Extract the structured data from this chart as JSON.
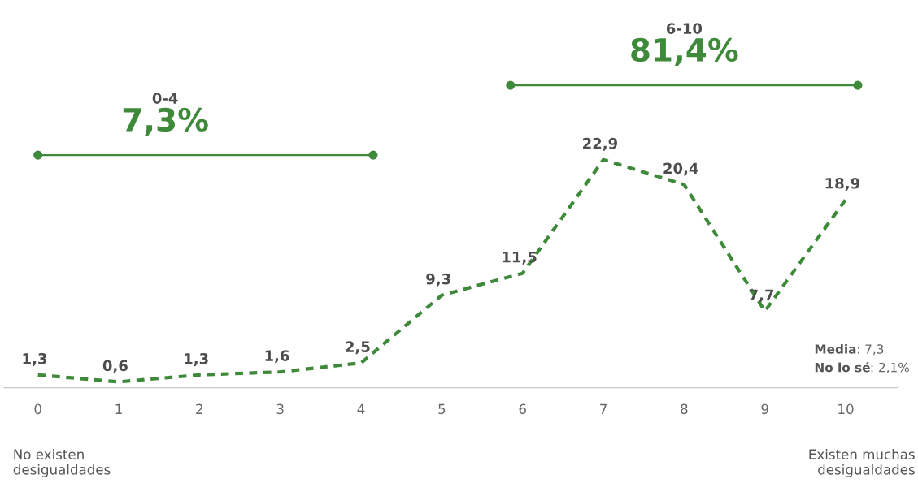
{
  "chart_data": {
    "type": "line",
    "categories": [
      "0",
      "1",
      "2",
      "3",
      "4",
      "5",
      "6",
      "7",
      "8",
      "9",
      "10"
    ],
    "series": [
      {
        "color": "#3e8a3a",
        "values": [
          1.3,
          0.6,
          1.3,
          1.6,
          2.5,
          9.3,
          11.5,
          22.9,
          20.4,
          7.7,
          18.9
        ],
        "value_labels": [
          "1,3",
          "0,6",
          "1,3",
          "1,6",
          "2,5",
          "9,3",
          "11,5",
          "22,9",
          "20,4",
          "7,7",
          "18,9"
        ]
      }
    ],
    "line_style": "dashed",
    "marker": "none",
    "grid": false,
    "legend": false,
    "tick_labels": "x",
    "annotations": [
      "0-4",
      "7,3%",
      "6-10",
      "81,4%",
      "No existen\ndesigualdades",
      "Existen muchas\ndesigualdades",
      "Media: 7,3",
      "No lo sé: 2,1%"
    ]
  }
}
